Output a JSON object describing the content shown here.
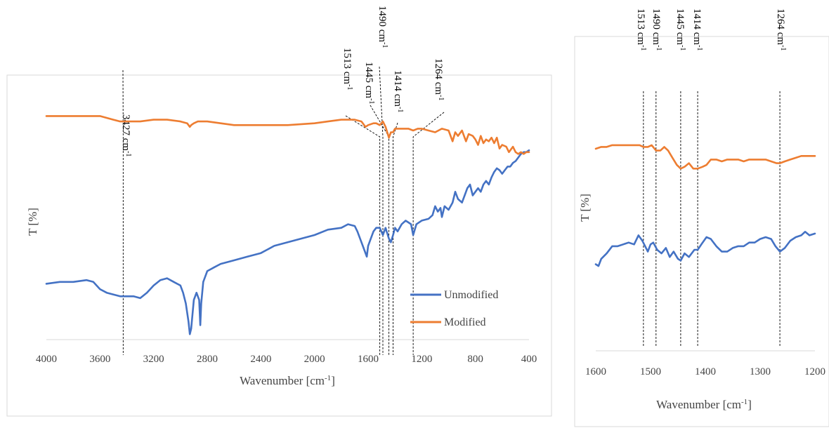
{
  "chart_data": [
    {
      "type": "line",
      "title": "",
      "xlabel": "Wavenumber [cm-1]",
      "xlabel_main": "Wavenumber [cm",
      "xlabel_sup": "-1",
      "xlabel_close": "]",
      "ylabel": "T [%]",
      "xlim": [
        4000,
        400
      ],
      "x_reversed": true,
      "grid": false,
      "legend_position": "bottom-right",
      "x_ticks": [
        "4000",
        "3600",
        "3200",
        "2800",
        "2400",
        "2000",
        "1600",
        "1200",
        "800",
        "400"
      ],
      "annotations": [
        {
          "x": 3427,
          "value": "3427",
          "unit": "cm",
          "sup": "-1"
        },
        {
          "x": 1513,
          "value": "1513",
          "unit": "cm",
          "sup": "-1"
        },
        {
          "x": 1490,
          "value": "1490",
          "unit": "cm",
          "sup": "-1"
        },
        {
          "x": 1445,
          "value": "1445",
          "unit": "cm",
          "sup": "-1"
        },
        {
          "x": 1414,
          "value": "1414",
          "unit": "cm",
          "sup": "-1"
        },
        {
          "x": 1264,
          "value": "1264",
          "unit": "cm",
          "sup": "-1"
        }
      ],
      "series": [
        {
          "name": "Unmodified",
          "color": "#4472C4",
          "x": [
            4000,
            3900,
            3800,
            3700,
            3650,
            3600,
            3550,
            3500,
            3450,
            3400,
            3350,
            3300,
            3250,
            3200,
            3150,
            3100,
            3050,
            3000,
            2980,
            2960,
            2940,
            2930,
            2920,
            2910,
            2900,
            2880,
            2870,
            2860,
            2852,
            2845,
            2830,
            2800,
            2750,
            2700,
            2600,
            2500,
            2400,
            2300,
            2200,
            2100,
            2000,
            1900,
            1800,
            1750,
            1700,
            1680,
            1650,
            1630,
            1610,
            1600,
            1580,
            1560,
            1540,
            1513,
            1490,
            1470,
            1445,
            1430,
            1414,
            1400,
            1380,
            1350,
            1320,
            1300,
            1280,
            1264,
            1240,
            1200,
            1150,
            1120,
            1100,
            1080,
            1060,
            1050,
            1030,
            1000,
            970,
            950,
            930,
            900,
            880,
            860,
            840,
            820,
            800,
            780,
            760,
            740,
            720,
            700,
            680,
            660,
            640,
            620,
            600,
            580,
            560,
            540,
            520,
            500,
            480,
            460,
            440,
            420,
            400
          ],
          "y": [
            31,
            32,
            32,
            33,
            32,
            28,
            26,
            25,
            24,
            24,
            24,
            23,
            26,
            30,
            33,
            34,
            32,
            30,
            26,
            20,
            10,
            3,
            6,
            14,
            22,
            26,
            24,
            22,
            8,
            20,
            32,
            38,
            40,
            42,
            44,
            46,
            48,
            52,
            54,
            56,
            58,
            61,
            62,
            64,
            63,
            60,
            54,
            50,
            46,
            52,
            56,
            60,
            62,
            62,
            58,
            62,
            56,
            54,
            58,
            62,
            60,
            64,
            66,
            65,
            64,
            58,
            64,
            66,
            67,
            69,
            74,
            71,
            73,
            68,
            74,
            72,
            76,
            82,
            78,
            76,
            80,
            84,
            86,
            80,
            82,
            84,
            82,
            86,
            88,
            86,
            90,
            93,
            95,
            94,
            92,
            94,
            96,
            96,
            98,
            99,
            101,
            103,
            104,
            104,
            105
          ]
        },
        {
          "name": "Modified",
          "color": "#ED7D31",
          "x": [
            4000,
            3800,
            3600,
            3500,
            3450,
            3400,
            3300,
            3200,
            3100,
            3000,
            2950,
            2930,
            2920,
            2900,
            2870,
            2850,
            2800,
            2700,
            2600,
            2400,
            2200,
            2000,
            1900,
            1800,
            1700,
            1650,
            1620,
            1600,
            1560,
            1540,
            1513,
            1490,
            1470,
            1445,
            1430,
            1414,
            1400,
            1380,
            1350,
            1300,
            1264,
            1230,
            1200,
            1150,
            1100,
            1050,
            1000,
            970,
            950,
            930,
            900,
            870,
            850,
            820,
            800,
            780,
            760,
            740,
            720,
            700,
            680,
            660,
            640,
            620,
            600,
            570,
            550,
            520,
            500,
            480,
            460,
            440,
            420,
            400
          ],
          "y": [
            124,
            124,
            124,
            122,
            121,
            121,
            121,
            122,
            122,
            121,
            120,
            118,
            119,
            120,
            121,
            121,
            121,
            120,
            119,
            119,
            119,
            120,
            121,
            122,
            122,
            121,
            118,
            119,
            120,
            120,
            119,
            121,
            118,
            112,
            115,
            115,
            117,
            117,
            117,
            117,
            116,
            117,
            117,
            116,
            115,
            117,
            116,
            110,
            115,
            113,
            116,
            110,
            114,
            113,
            111,
            108,
            113,
            109,
            111,
            110,
            112,
            109,
            112,
            106,
            108,
            107,
            104,
            107,
            104,
            103,
            104,
            103,
            104,
            104
          ]
        }
      ]
    },
    {
      "type": "line",
      "title": "",
      "xlabel": "Wavenumber [cm-1]",
      "xlabel_main": "Wavenumber [cm",
      "xlabel_sup": "-1",
      "xlabel_close": "]",
      "ylabel": "T [%]",
      "xlim": [
        1600,
        1200
      ],
      "x_reversed": true,
      "grid": false,
      "legend_position": "none",
      "x_ticks": [
        "1600",
        "1500",
        "1400",
        "1300",
        "1200"
      ],
      "annotations": [
        {
          "x": 1513,
          "value": "1513",
          "unit": "cm",
          "sup": "-1"
        },
        {
          "x": 1490,
          "value": "1490",
          "unit": "cm",
          "sup": "-1"
        },
        {
          "x": 1445,
          "value": "1445",
          "unit": "cm",
          "sup": "-1"
        },
        {
          "x": 1414,
          "value": "1414",
          "unit": "cm",
          "sup": "-1"
        },
        {
          "x": 1264,
          "value": "1264",
          "unit": "cm",
          "sup": "-1"
        }
      ],
      "series": [
        {
          "name": "Unmodified",
          "color": "#4472C4",
          "x": [
            1600,
            1595,
            1590,
            1580,
            1570,
            1560,
            1550,
            1540,
            1530,
            1522,
            1515,
            1505,
            1500,
            1495,
            1488,
            1480,
            1472,
            1465,
            1458,
            1450,
            1445,
            1438,
            1430,
            1420,
            1414,
            1405,
            1398,
            1390,
            1380,
            1370,
            1360,
            1350,
            1340,
            1330,
            1320,
            1310,
            1300,
            1290,
            1280,
            1272,
            1264,
            1255,
            1245,
            1235,
            1225,
            1218,
            1210,
            1200
          ],
          "y": [
            48,
            47,
            51,
            54,
            58,
            58,
            59,
            60,
            59,
            64,
            61,
            55,
            59,
            60,
            56,
            54,
            57,
            52,
            55,
            51,
            50,
            54,
            52,
            56,
            56,
            60,
            63,
            62,
            58,
            55,
            55,
            57,
            58,
            58,
            60,
            60,
            62,
            63,
            62,
            58,
            55,
            57,
            61,
            63,
            64,
            66,
            64,
            65
          ]
        },
        {
          "name": "Modified",
          "color": "#ED7D31",
          "x": [
            1600,
            1590,
            1580,
            1570,
            1560,
            1550,
            1540,
            1530,
            1520,
            1513,
            1505,
            1498,
            1490,
            1482,
            1475,
            1468,
            1460,
            1452,
            1445,
            1438,
            1430,
            1422,
            1414,
            1405,
            1398,
            1390,
            1380,
            1370,
            1360,
            1350,
            1340,
            1330,
            1320,
            1310,
            1300,
            1290,
            1280,
            1270,
            1264,
            1255,
            1245,
            1235,
            1225,
            1215,
            1210,
            1200
          ],
          "y": [
            112,
            113,
            113,
            114,
            114,
            114,
            114,
            114,
            114,
            113,
            113,
            114,
            111,
            111,
            113,
            111,
            107,
            103,
            101,
            102,
            104,
            101,
            101,
            102,
            103,
            106,
            106,
            105,
            106,
            106,
            106,
            105,
            106,
            106,
            106,
            106,
            105,
            104,
            104,
            105,
            106,
            107,
            108,
            108,
            108,
            108
          ]
        }
      ]
    }
  ]
}
